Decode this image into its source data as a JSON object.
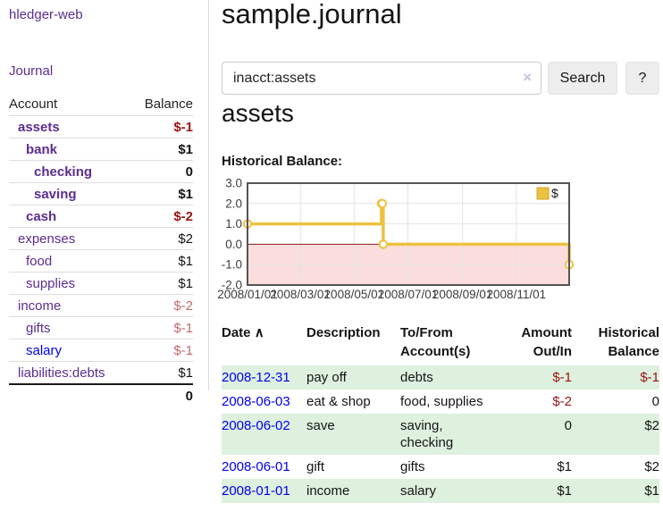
{
  "colors": {
    "link_purple": "#5c2d91",
    "link_blue": "#0000ee",
    "negative_strong": "#9b1313",
    "negative_soft": "#c46a6a",
    "row_stripe_green": "#def0de",
    "chart_gold": "#edc240",
    "chart_negative_fill": "#fbdddd",
    "chart_zero_line": "#8b1a1a"
  },
  "sidebar": {
    "app_title": "hledger-web",
    "journal_link": "Journal",
    "accounts": {
      "header_account": "Account",
      "header_balance": "Balance",
      "rows": [
        {
          "name": "assets",
          "balance": "$-1",
          "indent": 0,
          "bold": true,
          "link": "purple",
          "balance_style": "neg"
        },
        {
          "name": "bank",
          "balance": "$1",
          "indent": 1,
          "bold": true,
          "link": "purple",
          "balance_style": "plain"
        },
        {
          "name": "checking",
          "balance": "0",
          "indent": 2,
          "bold": true,
          "link": "purple",
          "balance_style": "plain"
        },
        {
          "name": "saving",
          "balance": "$1",
          "indent": 2,
          "bold": true,
          "link": "purple",
          "balance_style": "plain"
        },
        {
          "name": "cash",
          "balance": "$-2",
          "indent": 1,
          "bold": true,
          "link": "purple",
          "balance_style": "neg"
        },
        {
          "name": "expenses",
          "balance": "$2",
          "indent": 0,
          "bold": false,
          "link": "purple",
          "balance_style": "plain"
        },
        {
          "name": "food",
          "balance": "$1",
          "indent": 1,
          "bold": false,
          "link": "purple",
          "balance_style": "plain"
        },
        {
          "name": "supplies",
          "balance": "$1",
          "indent": 1,
          "bold": false,
          "link": "purple",
          "balance_style": "plain"
        },
        {
          "name": "income",
          "balance": "$-2",
          "indent": 0,
          "bold": false,
          "link": "purple",
          "balance_style": "soft"
        },
        {
          "name": "gifts",
          "balance": "$-1",
          "indent": 1,
          "bold": false,
          "link": "purple",
          "balance_style": "soft"
        },
        {
          "name": "salary",
          "balance": "$-1",
          "indent": 1,
          "bold": false,
          "link": "blue",
          "balance_style": "soft"
        },
        {
          "name": "liabilities:debts",
          "balance": "$1",
          "indent": 0,
          "bold": false,
          "link": "purple",
          "balance_style": "plain"
        }
      ],
      "total": "0"
    }
  },
  "header": {
    "title": "sample.journal"
  },
  "search": {
    "value": "inacct:assets",
    "clear_icon": "×",
    "button_label": "Search",
    "help_label": "?"
  },
  "account_page": {
    "heading": "assets",
    "chart_title": "Historical Balance:"
  },
  "chart_data": {
    "type": "line",
    "title": "Historical Balance",
    "step": true,
    "ylim": [
      -2,
      3
    ],
    "y_ticks": [
      "3.0",
      "2.0",
      "1.0",
      "0.0",
      "-1.0",
      "-2.0"
    ],
    "x_ticks": [
      "2008/01/01",
      "2008/03/01",
      "2008/05/01",
      "2008/07/01",
      "2008/09/01",
      "2008/11/01"
    ],
    "x_range": [
      "2008-01-01",
      "2008-12-31"
    ],
    "series": [
      {
        "name": "$",
        "color": "#edc240",
        "points": [
          [
            "2008-01-01",
            1
          ],
          [
            "2008-06-01",
            2
          ],
          [
            "2008-06-02",
            2
          ],
          [
            "2008-06-03",
            0
          ],
          [
            "2008-12-31",
            -1
          ]
        ]
      }
    ],
    "legend": {
      "position": "top-right",
      "label": "$"
    },
    "grid": true,
    "negative_fill": "#fbdddd",
    "zero_line_color": "#8b1a1a"
  },
  "transactions": {
    "headers": {
      "date": "Date",
      "sort_arrow": "∧",
      "description": "Description",
      "accounts": "To/From Account(s)",
      "amount": "Amount Out/In",
      "balance": "Historical Balance"
    },
    "rows": [
      {
        "date": "2008-12-31",
        "description": "pay off",
        "accounts": "debts",
        "amount": "$-1",
        "balance": "$-1",
        "amount_negative": true,
        "balance_negative": true
      },
      {
        "date": "2008-06-03",
        "description": "eat & shop",
        "accounts": "food, supplies",
        "amount": "$-2",
        "balance": "0",
        "amount_negative": true,
        "balance_negative": false
      },
      {
        "date": "2008-06-02",
        "description": "save",
        "accounts": "saving,\nchecking",
        "amount": "0",
        "balance": "$2",
        "amount_negative": false,
        "balance_negative": false
      },
      {
        "date": "2008-06-01",
        "description": "gift",
        "accounts": "gifts",
        "amount": "$1",
        "balance": "$2",
        "amount_negative": false,
        "balance_negative": false
      },
      {
        "date": "2008-01-01",
        "description": "income",
        "accounts": "salary",
        "amount": "$1",
        "balance": "$1",
        "amount_negative": false,
        "balance_negative": false
      }
    ]
  }
}
